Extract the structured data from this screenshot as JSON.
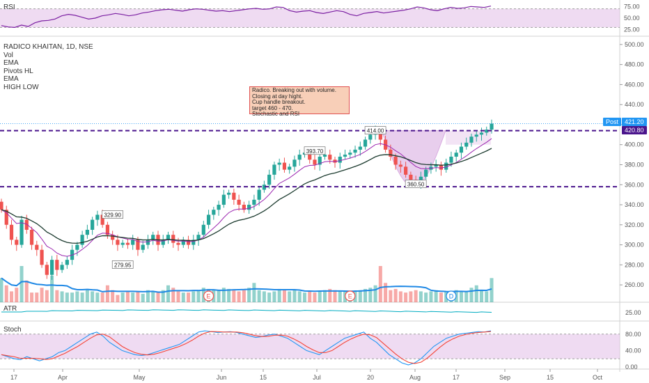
{
  "header": {
    "symbol_line": "RADICO KHAITAN, 1D, NSE"
  },
  "legend": [
    "Vol",
    "EMA",
    "Pivots HL",
    "EMA",
    "HIGH LOW"
  ],
  "note": {
    "lines": [
      "Radico. Breaking out with volume.",
      "Closing at day hight.",
      "Cup handle breakout.",
      "target 460 - 470.",
      "Stochastic and RSI"
    ]
  },
  "price_tags": {
    "post_label": "Post",
    "last_price": "421.20",
    "resistance": "420.80"
  },
  "colors": {
    "up": "#26a69a",
    "down": "#ef5350",
    "resistance": "#4a148c",
    "ema_fast": "#9c27b0",
    "ema_slow": "#1b3a2e",
    "volume_ma": "#1e88e5",
    "rsi": "#7b1fa2",
    "stoch_k": "#2196f3",
    "stoch_d": "#f44336",
    "band": "#e1bee7"
  },
  "chart_data": [
    {
      "type": "line",
      "title": "RSI",
      "yticks": [
        "75.00",
        "50.00",
        "25.00"
      ],
      "ylim": [
        20,
        80
      ],
      "band": [
        30,
        70
      ],
      "values": [
        34,
        31,
        30,
        35,
        32,
        40,
        44,
        45,
        48,
        55,
        58,
        56,
        52,
        48,
        50,
        55,
        57,
        60,
        58,
        55,
        57,
        61,
        63,
        66,
        68,
        69,
        67,
        65,
        68,
        70,
        69,
        67,
        65,
        66,
        64,
        66,
        68,
        70,
        71,
        69,
        70,
        74,
        73,
        66,
        63,
        65,
        66,
        62,
        60,
        63,
        66,
        64,
        58,
        55,
        60,
        62,
        64,
        61,
        63,
        65,
        67,
        70,
        74,
        72,
        68,
        66,
        70,
        73,
        71,
        72,
        75,
        74,
        73,
        76
      ]
    },
    {
      "type": "candlestick",
      "title": "RADICO KHAITAN, 1D, NSE",
      "ylim": [
        242,
        502
      ],
      "yticks": [
        "500.00",
        "480.00",
        "460.00",
        "440.00",
        "420.00",
        "400.00",
        "380.00",
        "360.00",
        "340.00",
        "320.00",
        "300.00",
        "280.00",
        "260.00"
      ],
      "xticks": [
        "17",
        "Apr",
        "May",
        "Jun",
        "15",
        "Jul",
        "20",
        "Aug",
        "17",
        "Sep",
        "15",
        "Oct"
      ],
      "closes": [
        335,
        320,
        305,
        300,
        325,
        315,
        300,
        295,
        280,
        270,
        285,
        275,
        280,
        285,
        295,
        300,
        310,
        315,
        325,
        330,
        320,
        310,
        305,
        300,
        302,
        300,
        305,
        295,
        300,
        305,
        310,
        300,
        305,
        310,
        302,
        300,
        305,
        300,
        305,
        310,
        320,
        330,
        335,
        340,
        350,
        352,
        345,
        340,
        335,
        340,
        345,
        355,
        360,
        370,
        380,
        382,
        375,
        378,
        385,
        390,
        392,
        385,
        380,
        388,
        390,
        385,
        382,
        388,
        390,
        392,
        395,
        398,
        405,
        410,
        414,
        405,
        395,
        388,
        380,
        378,
        370,
        365,
        362,
        368,
        375,
        378,
        380,
        375,
        382,
        388,
        392,
        398,
        402,
        408,
        410,
        412,
        415,
        421
      ],
      "resistance_lines": [
        414,
        358
      ],
      "pivot_labels": [
        {
          "text": "329.90",
          "price": 329.9
        },
        {
          "text": "279.95",
          "price": 279.95
        },
        {
          "text": "393.70",
          "price": 393.7
        },
        {
          "text": "414.00",
          "price": 414.0
        },
        {
          "text": "360.50",
          "price": 360.5
        }
      ],
      "volume": [
        20,
        14,
        9,
        12,
        30,
        18,
        8,
        8,
        12,
        10,
        22,
        10,
        9,
        8,
        8,
        9,
        8,
        10,
        9,
        8,
        8,
        14,
        10,
        6,
        8,
        9,
        8,
        9,
        7,
        10,
        9,
        8,
        10,
        14,
        12,
        9,
        8,
        8,
        9,
        10,
        12,
        11,
        10,
        10,
        12,
        11,
        10,
        9,
        10,
        12,
        16,
        10,
        9,
        8,
        9,
        11,
        10,
        9,
        10,
        9,
        8,
        9,
        8,
        9,
        10,
        11,
        10,
        9,
        9,
        8,
        9,
        10,
        11,
        12,
        14,
        30,
        16,
        10,
        11,
        9,
        8,
        9,
        10,
        9,
        8,
        9,
        10,
        8,
        9,
        8,
        10,
        9,
        9,
        12,
        14,
        10,
        9,
        20
      ],
      "events": [
        "E",
        "E",
        "D"
      ]
    },
    {
      "type": "line",
      "title": "ATR",
      "yticks": [
        "25.00"
      ]
    },
    {
      "type": "line",
      "title": "Stoch",
      "ylim": [
        0,
        100
      ],
      "band": [
        20,
        80
      ],
      "yticks": [
        "80.00",
        "40.00",
        "0.00"
      ],
      "k": [
        30,
        25,
        20,
        18,
        25,
        20,
        15,
        20,
        25,
        35,
        40,
        50,
        60,
        70,
        80,
        85,
        75,
        60,
        50,
        40,
        35,
        30,
        28,
        30,
        35,
        40,
        45,
        50,
        55,
        65,
        75,
        85,
        88,
        86,
        84,
        85,
        86,
        84,
        80,
        76,
        72,
        74,
        78,
        80,
        75,
        70,
        60,
        50,
        40,
        35,
        30,
        40,
        50,
        60,
        70,
        75,
        80,
        85,
        70,
        60,
        45,
        30,
        20,
        10,
        5,
        10,
        20,
        35,
        50,
        60,
        70,
        75,
        80,
        82,
        84,
        86,
        85,
        88
      ]
    }
  ]
}
